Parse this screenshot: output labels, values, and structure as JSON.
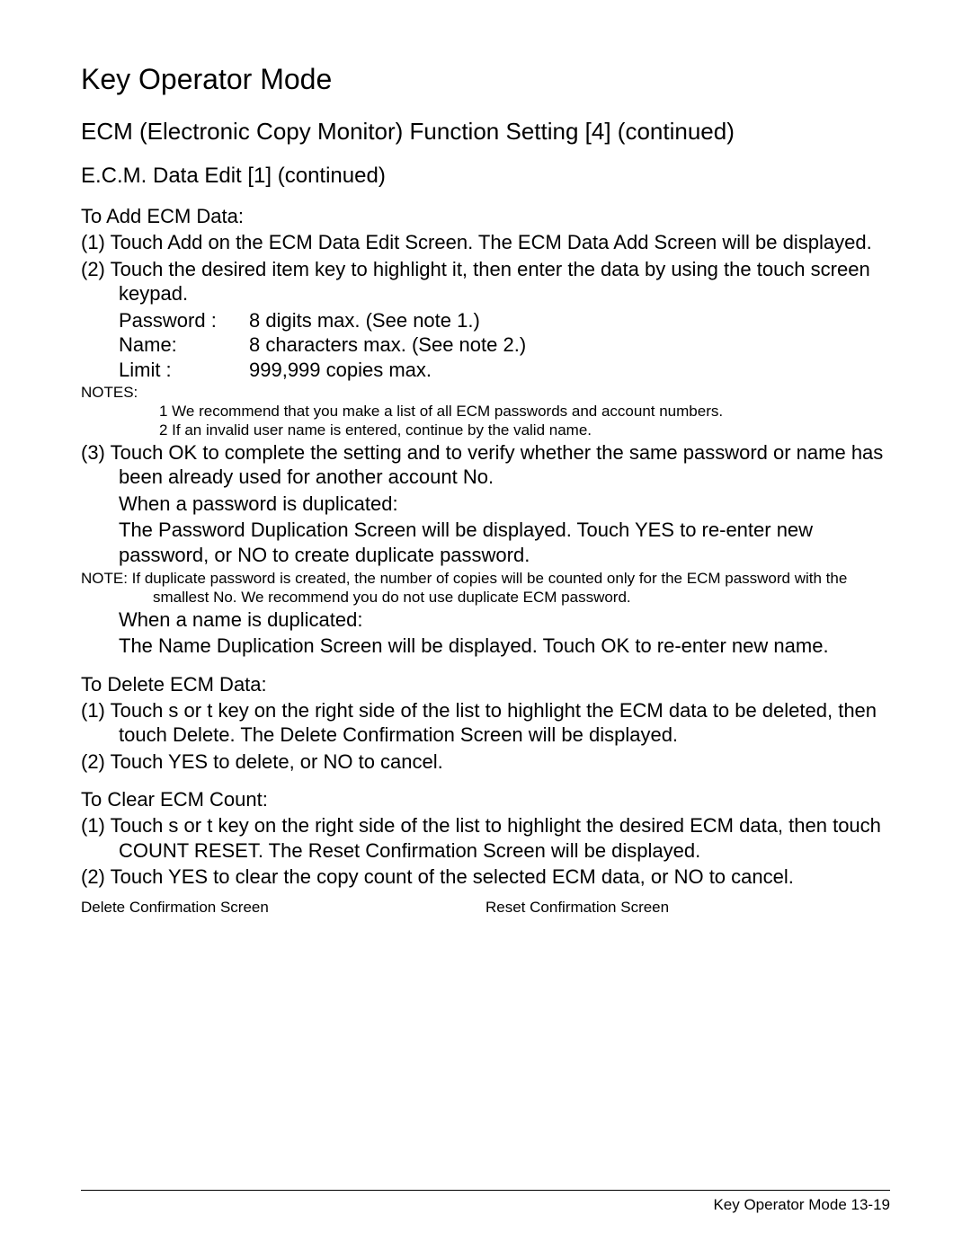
{
  "colors": {
    "background": "#ffffff",
    "text": "#000000",
    "rule": "#000000"
  },
  "typography": {
    "family": "Arial, Helvetica, sans-serif",
    "title_size_pt": 24,
    "section_size_pt": 20,
    "subsection_size_pt": 18,
    "body_size_pt": 16,
    "notes_size_pt": 13,
    "footer_size_pt": 13
  },
  "title": "Key Operator Mode",
  "section": "ECM (Electronic Copy Monitor) Function Setting [4] (continued)",
  "subsection": "E.C.M. Data Edit [1] (continued)",
  "add_ecm": {
    "heading": "To Add ECM Data:",
    "step1_a": "(1) Touch ",
    "step1_key": "Add",
    "step1_b": " on the ECM Data Edit Screen. The ECM Data Add Screen will be displayed.",
    "step2": "(2) Touch the desired item key to highlight it, then enter the data by using the touch screen keypad.",
    "fields": {
      "password_label": "Password :",
      "password_val": "8 digits max. (See note 1.)",
      "name_label": "Name:",
      "name_val": "8 characters max. (See note 2.)",
      "limit_label": "Limit :",
      "limit_val": "999,999 copies max."
    },
    "notes_label": "NOTES:",
    "note1": "1  We recommend that you make a list of all ECM passwords and account numbers.",
    "note2": "2  If an invalid user name is entered, continue by the valid name.",
    "step3_a": "(3) Touch ",
    "step3_key": "OK",
    "step3_b": " to complete the setting and to verify whether the same password or name has been already used for another account No.",
    "dup_pw_heading": "When a password is duplicated:",
    "dup_pw_body_a": "The Password Duplication Screen will be displayed. Touch ",
    "dup_pw_key1": "YES",
    "dup_pw_body_b": " to re-enter new password, or ",
    "dup_pw_key2": "NO",
    "dup_pw_body_c": " to create duplicate password.",
    "dup_note_label": "NOTE:",
    "dup_note_body": " If duplicate password is created, the number of copies will be counted only for the ECM password with the smallest No.  We recommend you do not use duplicate ECM password.",
    "dup_name_heading": "When a name is duplicated:",
    "dup_name_body": "The Name Duplication Screen will be displayed. Touch OK to re-enter new name."
  },
  "delete_ecm": {
    "heading": "To Delete ECM Data:",
    "step1_a": "(1) Touch ",
    "step1_key1": "s",
    "step1_b": " or ",
    "step1_key2": "t",
    "step1_c": " key on the right side of the list to highlight the ECM data to be deleted, then touch ",
    "step1_key3": "Delete",
    "step1_d": ". The Delete Confirmation Screen will be displayed.",
    "step2_a": "(2) Touch ",
    "step2_key1": "YES",
    "step2_b": " to delete, or ",
    "step2_key2": "NO",
    "step2_c": " to cancel."
  },
  "clear_ecm": {
    "heading": "To Clear ECM Count:",
    "step1_a": "(1) Touch ",
    "step1_key1": "s",
    "step1_b": " or ",
    "step1_key2": "t",
    "step1_c": " key on the right side of the list to highlight the desired ECM data, then touch ",
    "step1_key3": "COUNT RESET",
    "step1_d": ". The Reset Confirmation Screen will be displayed.",
    "step2_a": "(2) Touch ",
    "step2_key1": "YES",
    "step2_b": " to clear the copy count of the selected ECM data, or ",
    "step2_key2": "NO",
    "step2_c": " to cancel."
  },
  "screens": {
    "left": "Delete Confirmation Screen",
    "right": "Reset Confirmation Screen"
  },
  "footer": "Key Operator Mode 13-19"
}
